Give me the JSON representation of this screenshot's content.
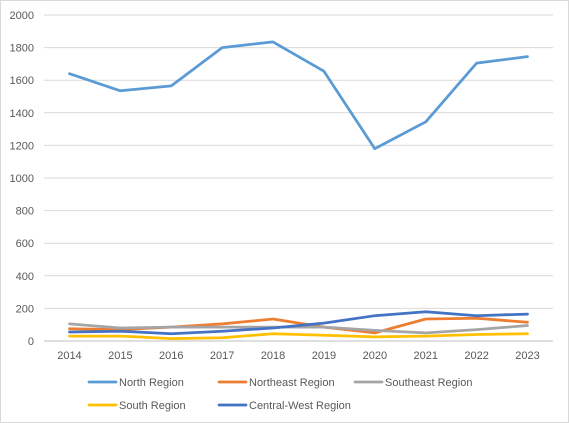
{
  "chart_data": {
    "type": "line",
    "title": "",
    "xlabel": "",
    "ylabel": "",
    "x": [
      "2014",
      "2015",
      "2016",
      "2017",
      "2018",
      "2019",
      "2020",
      "2021",
      "2022",
      "2023"
    ],
    "ylim": [
      0,
      2000
    ],
    "yticks": [
      "0",
      "200",
      "400",
      "600",
      "800",
      "1000",
      "1200",
      "1400",
      "1600",
      "1800",
      "2000"
    ],
    "grid": true,
    "legend_position": "bottom",
    "series": [
      {
        "name": "North Region",
        "color": "#5b9bd5",
        "values": [
          1640,
          1535,
          1565,
          1800,
          1835,
          1655,
          1180,
          1345,
          1705,
          1745
        ]
      },
      {
        "name": "Northeast Region",
        "color": "#ed7d31",
        "values": [
          75,
          70,
          85,
          105,
          135,
          85,
          50,
          135,
          140,
          115
        ]
      },
      {
        "name": "Southeast Region",
        "color": "#a5a5a5",
        "values": [
          105,
          80,
          85,
          85,
          85,
          85,
          65,
          50,
          70,
          95
        ]
      },
      {
        "name": "South Region",
        "color": "#ffc000",
        "values": [
          30,
          30,
          15,
          20,
          45,
          35,
          25,
          30,
          40,
          45
        ]
      },
      {
        "name": "Central-West Region",
        "color": "#4472c4",
        "values": [
          55,
          60,
          45,
          60,
          80,
          110,
          155,
          180,
          155,
          165
        ]
      }
    ]
  }
}
